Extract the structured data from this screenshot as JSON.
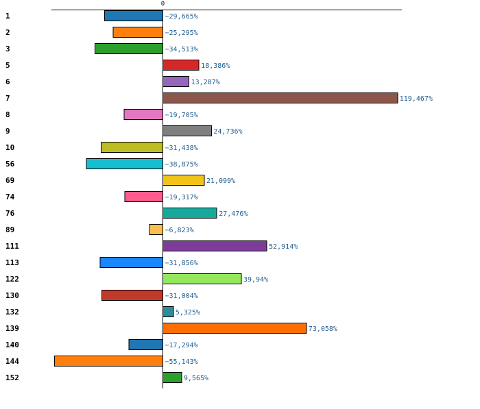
{
  "chart_data": {
    "type": "bar",
    "orientation": "horizontal",
    "title": "",
    "xlabel": "",
    "ylabel": "",
    "zero_tick_label": "0",
    "xlim": [
      -55.143,
      119.467
    ],
    "categories": [
      "1",
      "2",
      "3",
      "5",
      "6",
      "7",
      "8",
      "9",
      "10",
      "56",
      "69",
      "74",
      "76",
      "89",
      "111",
      "113",
      "122",
      "130",
      "132",
      "139",
      "140",
      "144",
      "152"
    ],
    "values": [
      -29.665,
      -25.295,
      -34.513,
      18.386,
      13.287,
      119.467,
      -19.705,
      24.736,
      -31.438,
      -38.875,
      21.099,
      -19.317,
      27.476,
      -6.823,
      52.914,
      -31.856,
      39.94,
      -31.004,
      5.325,
      73.058,
      -17.294,
      -55.143,
      9.565
    ],
    "value_labels": [
      "−29,665%",
      "−25,295%",
      "−34,513%",
      "18,386%",
      "13,287%",
      "119,467%",
      "−19,705%",
      "24,736%",
      "−31,438%",
      "−38,875%",
      "21,099%",
      "−19,317%",
      "27,476%",
      "−6,823%",
      "52,914%",
      "−31,856%",
      "39,94%",
      "−31,004%",
      "5,325%",
      "73,058%",
      "−17,294%",
      "−55,143%",
      "9,565%"
    ],
    "colors": [
      "#1f77b4",
      "#ff7f0e",
      "#2ca02c",
      "#d62728",
      "#9467bd",
      "#8c564b",
      "#e377c2",
      "#7f7f7f",
      "#bcbd22",
      "#17becf",
      "#f2c418",
      "#ff5c8d",
      "#17a89c",
      "#f9c04d",
      "#7d3c98",
      "#1a86ff",
      "#94e85c",
      "#c0392b",
      "#2c8c9c",
      "#ff6e00",
      "#1f77b4",
      "#ff7f0e",
      "#2ca02c"
    ],
    "value_label_color": "#1f5c8f"
  }
}
